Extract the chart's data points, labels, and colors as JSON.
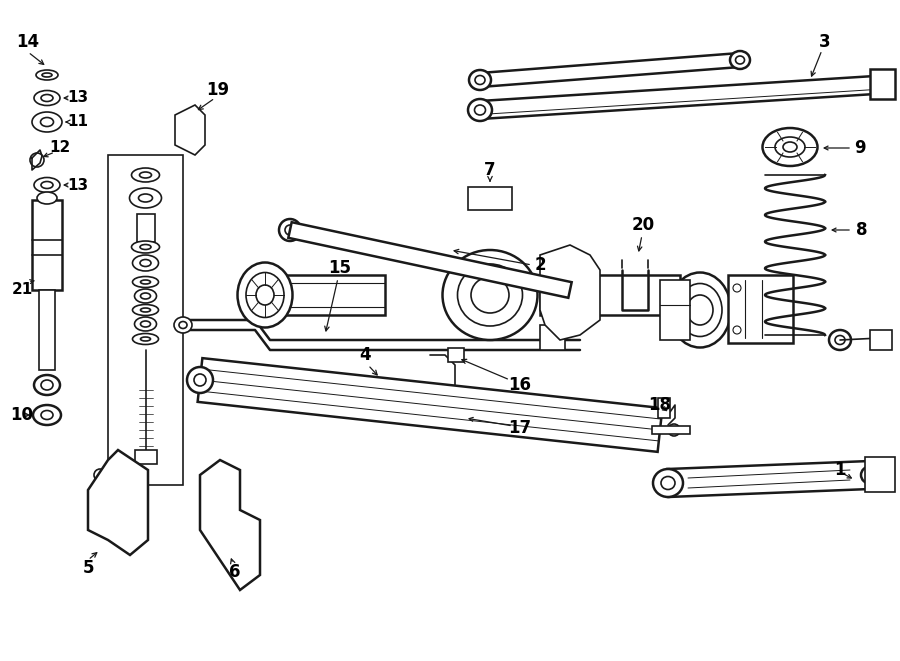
{
  "bg_color": "#ffffff",
  "line_color": "#1a1a1a",
  "fig_width": 9.0,
  "fig_height": 6.61,
  "dpi": 100
}
